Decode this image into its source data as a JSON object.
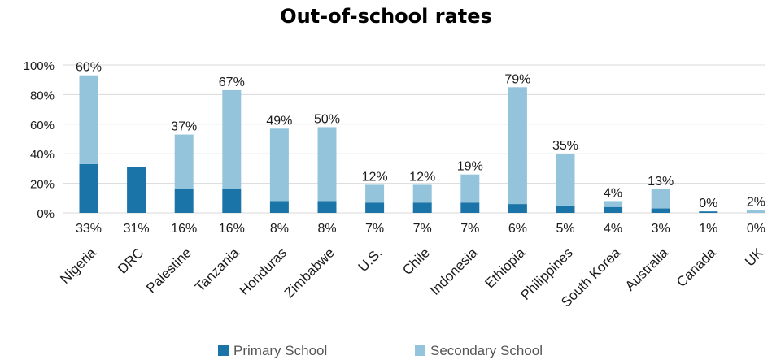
{
  "chart_data": {
    "type": "bar",
    "stacked": true,
    "title": "Out-of-school rates",
    "categories": [
      "Nigeria",
      "DRC",
      "Palestine",
      "Tanzania",
      "Honduras",
      "Zimbabwe",
      "U.S.",
      "Chile",
      "Indonesia",
      "Ethiopia",
      "Philippines",
      "South Korea",
      "Australia",
      "Canada",
      "UK"
    ],
    "series": [
      {
        "name": "Primary School",
        "values": [
          33,
          31,
          16,
          16,
          8,
          8,
          7,
          7,
          7,
          6,
          5,
          4,
          3,
          1,
          0
        ]
      },
      {
        "name": "Secondary School",
        "values": [
          60,
          null,
          37,
          67,
          49,
          50,
          12,
          12,
          19,
          79,
          35,
          4,
          13,
          0,
          2
        ]
      }
    ],
    "primary_labels": [
      "33%",
      "31%",
      "16%",
      "16%",
      "8%",
      "8%",
      "7%",
      "7%",
      "7%",
      "6%",
      "5%",
      "4%",
      "3%",
      "1%",
      "0%"
    ],
    "secondary_labels": [
      "60%",
      "",
      "37%",
      "67%",
      "49%",
      "50%",
      "12%",
      "12%",
      "19%",
      "79%",
      "35%",
      "4%",
      "13%",
      "0%",
      "2%"
    ],
    "ylim": [
      0,
      100
    ],
    "yticks": [
      "0%",
      "20%",
      "40%",
      "60%",
      "80%",
      "100%"
    ],
    "grid": true,
    "legend_position": "bottom",
    "colors": {
      "primary": "#1a74a8",
      "secondary": "#93c4dc",
      "grid": "#d9d9d9"
    }
  }
}
